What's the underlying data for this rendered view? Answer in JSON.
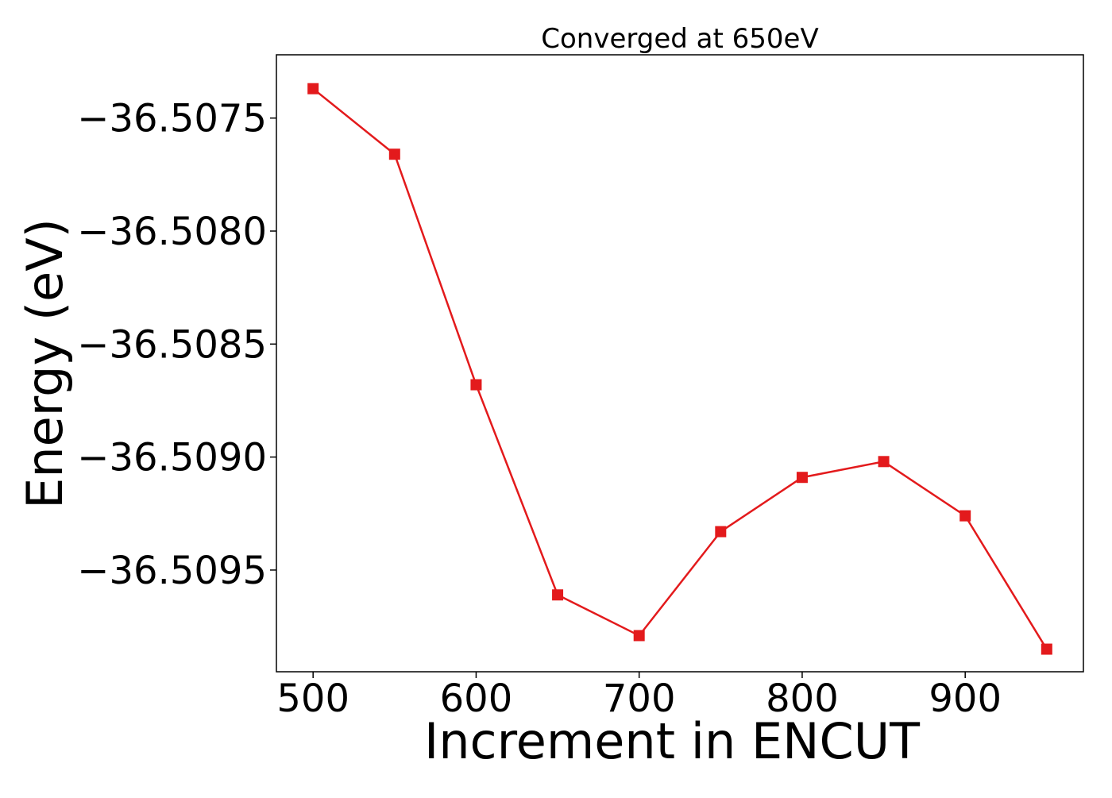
{
  "chart_data": {
    "type": "line",
    "title": "Converged at 650eV",
    "xlabel": "Increment in ENCUT",
    "ylabel": "Energy (eV)",
    "x": [
      500,
      550,
      600,
      650,
      700,
      750,
      800,
      850,
      900,
      950
    ],
    "series": [
      {
        "values": [
          -36.50737,
          -36.50766,
          -36.50868,
          -36.50961,
          -36.50979,
          -36.50933,
          -36.50909,
          -36.50902,
          -36.50926,
          -36.50985
        ],
        "color": "#e31a1c",
        "marker": "square"
      }
    ],
    "xlim": [
      477.5,
      972.5
    ],
    "ylim": [
      -36.50995,
      -36.50722
    ],
    "xticks": [
      500,
      600,
      700,
      800,
      900
    ],
    "xtick_labels": [
      "500",
      "600",
      "700",
      "800",
      "900"
    ],
    "yticks": [
      -36.5075,
      -36.508,
      -36.5085,
      -36.509,
      -36.5095
    ],
    "ytick_labels": [
      "−36.5075",
      "−36.5080",
      "−36.5085",
      "−36.5090",
      "−36.5095"
    ],
    "grid": false,
    "legend": false
  }
}
